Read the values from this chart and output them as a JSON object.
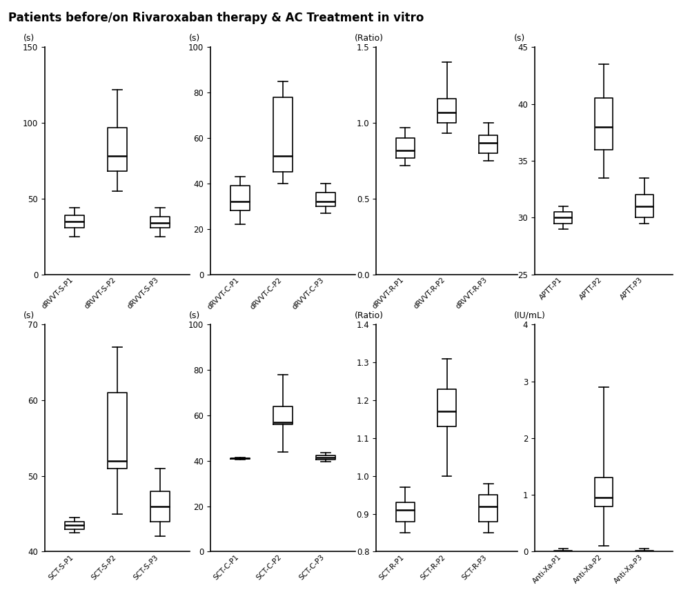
{
  "title": "Patients before/on Rivaroxaban therapy & AC Treatment in vitro",
  "title_bg": "#b8b8b8",
  "fig_bg": "#ffffff",
  "subplots": [
    {
      "row": 0,
      "col": 0,
      "ylabel": "(s)",
      "ylim": [
        0,
        150
      ],
      "yticks": [
        0,
        50,
        100,
        150
      ],
      "categories": [
        "dRVVT-S-P1",
        "dRVVT-S-P2",
        "dRVVT-S-P3"
      ],
      "boxes": [
        {
          "whislo": 25,
          "q1": 31,
          "med": 35,
          "q3": 39,
          "whishi": 44
        },
        {
          "whislo": 55,
          "q1": 68,
          "med": 78,
          "q3": 97,
          "whishi": 122
        },
        {
          "whislo": 25,
          "q1": 31,
          "med": 34,
          "q3": 38,
          "whishi": 44
        }
      ]
    },
    {
      "row": 0,
      "col": 1,
      "ylabel": "(s)",
      "ylim": [
        0,
        100
      ],
      "yticks": [
        0,
        20,
        40,
        60,
        80,
        100
      ],
      "categories": [
        "dRVVT-C-P1",
        "dRVVT-C-P2",
        "dRVVT-C-P3"
      ],
      "boxes": [
        {
          "whislo": 22,
          "q1": 28,
          "med": 32,
          "q3": 39,
          "whishi": 43
        },
        {
          "whislo": 40,
          "q1": 45,
          "med": 52,
          "q3": 78,
          "whishi": 85
        },
        {
          "whislo": 27,
          "q1": 30,
          "med": 32,
          "q3": 36,
          "whishi": 40
        }
      ]
    },
    {
      "row": 0,
      "col": 2,
      "ylabel": "(Ratio)",
      "ylim": [
        0.0,
        1.5
      ],
      "yticks": [
        0.0,
        0.5,
        1.0,
        1.5
      ],
      "categories": [
        "dRVVT-R-P1",
        "dRVVT-R-P2",
        "dRVVT-R-P3"
      ],
      "boxes": [
        {
          "whislo": 0.72,
          "q1": 0.77,
          "med": 0.82,
          "q3": 0.9,
          "whishi": 0.97
        },
        {
          "whislo": 0.93,
          "q1": 1.0,
          "med": 1.07,
          "q3": 1.16,
          "whishi": 1.4
        },
        {
          "whislo": 0.75,
          "q1": 0.8,
          "med": 0.87,
          "q3": 0.92,
          "whishi": 1.0
        }
      ]
    },
    {
      "row": 0,
      "col": 3,
      "ylabel": "(s)",
      "ylim": [
        25,
        45
      ],
      "yticks": [
        25,
        30,
        35,
        40,
        45
      ],
      "categories": [
        "APTT-P1",
        "APTT-P2",
        "APTT-P3"
      ],
      "boxes": [
        {
          "whislo": 29.0,
          "q1": 29.5,
          "med": 30.0,
          "q3": 30.5,
          "whishi": 31.0
        },
        {
          "whislo": 33.5,
          "q1": 36.0,
          "med": 38.0,
          "q3": 40.5,
          "whishi": 43.5
        },
        {
          "whislo": 29.5,
          "q1": 30.0,
          "med": 31.0,
          "q3": 32.0,
          "whishi": 33.5
        }
      ]
    },
    {
      "row": 1,
      "col": 0,
      "ylabel": "(s)",
      "ylim": [
        40,
        70
      ],
      "yticks": [
        40,
        50,
        60,
        70
      ],
      "categories": [
        "SCT-S-P1",
        "SCT-S-P2",
        "SCT-S-P3"
      ],
      "boxes": [
        {
          "whislo": 42.5,
          "q1": 43.0,
          "med": 43.5,
          "q3": 44.0,
          "whishi": 44.5
        },
        {
          "whislo": 45.0,
          "q1": 51.0,
          "med": 52.0,
          "q3": 61.0,
          "whishi": 67.0
        },
        {
          "whislo": 42.0,
          "q1": 44.0,
          "med": 46.0,
          "q3": 48.0,
          "whishi": 51.0
        }
      ]
    },
    {
      "row": 1,
      "col": 1,
      "ylabel": "(s)",
      "ylim": [
        0,
        100
      ],
      "yticks": [
        0,
        20,
        40,
        60,
        80,
        100
      ],
      "categories": [
        "SCT-C-P1",
        "SCT-C-P2",
        "SCT-C-P3"
      ],
      "boxes": [
        {
          "whislo": 40.5,
          "q1": 40.8,
          "med": 41.0,
          "q3": 41.2,
          "whishi": 41.5
        },
        {
          "whislo": 44.0,
          "q1": 56.0,
          "med": 57.0,
          "q3": 64.0,
          "whishi": 78.0
        },
        {
          "whislo": 39.5,
          "q1": 40.5,
          "med": 41.5,
          "q3": 42.5,
          "whishi": 43.5
        }
      ]
    },
    {
      "row": 1,
      "col": 2,
      "ylabel": "(Ratio)",
      "ylim": [
        0.8,
        1.4
      ],
      "yticks": [
        0.8,
        0.9,
        1.0,
        1.1,
        1.2,
        1.3,
        1.4
      ],
      "categories": [
        "SCT-R-P1",
        "SCT-R-P2",
        "SCT-R-P3"
      ],
      "boxes": [
        {
          "whislo": 0.85,
          "q1": 0.88,
          "med": 0.91,
          "q3": 0.93,
          "whishi": 0.97
        },
        {
          "whislo": 1.0,
          "q1": 1.13,
          "med": 1.17,
          "q3": 1.23,
          "whishi": 1.31
        },
        {
          "whislo": 0.85,
          "q1": 0.88,
          "med": 0.92,
          "q3": 0.95,
          "whishi": 0.98
        }
      ]
    },
    {
      "row": 1,
      "col": 3,
      "ylabel": "(IU/mL)",
      "ylim": [
        0,
        4
      ],
      "yticks": [
        0,
        1,
        2,
        3,
        4
      ],
      "categories": [
        "Anti-Xa-P1",
        "Anti-Xa-P2",
        "Anti-Xa-P3"
      ],
      "boxes": [
        {
          "whislo": 0.0,
          "q1": 0.0,
          "med": 0.0,
          "q3": 0.02,
          "whishi": 0.05
        },
        {
          "whislo": 0.1,
          "q1": 0.8,
          "med": 0.95,
          "q3": 1.3,
          "whishi": 2.9
        },
        {
          "whislo": 0.0,
          "q1": 0.0,
          "med": 0.0,
          "q3": 0.02,
          "whishi": 0.05
        }
      ]
    }
  ]
}
